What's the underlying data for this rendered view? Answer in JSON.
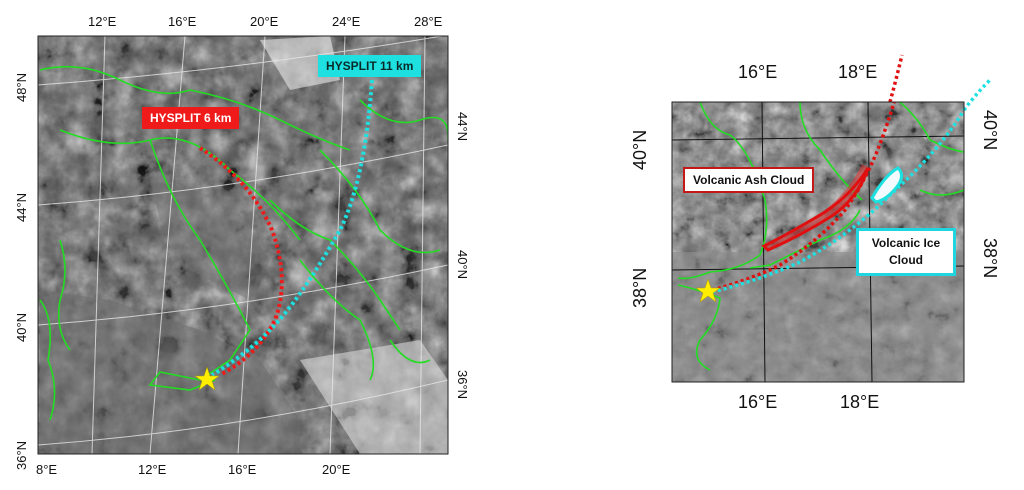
{
  "left_map": {
    "top_ticks": [
      "12°E",
      "16°E",
      "20°E",
      "24°E",
      "28°E"
    ],
    "bottom_ticks": [
      "8°E",
      "12°E",
      "16°E",
      "20°E"
    ],
    "left_ticks": [
      "48°N",
      "44°N",
      "40°N",
      "36°N"
    ],
    "right_ticks": [
      "44°N",
      "40°N",
      "36°N"
    ],
    "labels": {
      "hysplit_6": "HYSPLIT 6 km",
      "hysplit_11": "HYSPLIT 11 km"
    },
    "colors": {
      "hysplit_6": "#ef1b1b",
      "hysplit_11": "#1fe0e0",
      "borders": "#22dd22",
      "star": "#ffee00"
    }
  },
  "right_map": {
    "top_ticks": [
      "16°E",
      "18°E"
    ],
    "bottom_ticks": [
      "16°E",
      "18°E"
    ],
    "left_ticks": [
      "40°N",
      "38°N"
    ],
    "right_ticks": [
      "40°N",
      "38°N"
    ],
    "labels": {
      "ash_cloud": "Volcanic Ash Cloud",
      "ice_cloud": "Volcanic Ice Cloud"
    },
    "colors": {
      "ash": "#e01010",
      "ice": "#1fe0e0",
      "borders": "#22dd22",
      "star": "#ffee00"
    }
  }
}
